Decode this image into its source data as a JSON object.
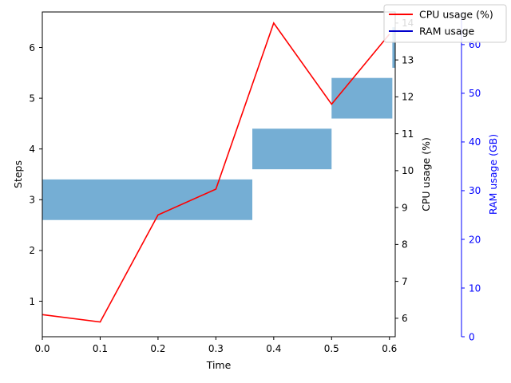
{
  "chart_data": {
    "type": "line",
    "xlabel": "Time",
    "x_ticks": [
      "0.0",
      "0.1",
      "0.2",
      "0.3",
      "0.4",
      "0.5",
      "0.6"
    ],
    "xlim": [
      0,
      0.61
    ],
    "axes": {
      "steps": {
        "label": "Steps",
        "ylim": [
          0.3,
          6.7
        ],
        "ticks": [
          "1",
          "2",
          "3",
          "4",
          "5",
          "6"
        ],
        "color": "#000000"
      },
      "cpu": {
        "label": "CPU usage (%)",
        "ylim": [
          5.5,
          14.3
        ],
        "ticks": [
          "6",
          "7",
          "8",
          "9",
          "10",
          "11",
          "12",
          "13",
          "14"
        ],
        "color": "#000000"
      },
      "ram": {
        "label": "RAM usage (GB)",
        "ylim": [
          0,
          66.7
        ],
        "ticks": [
          "0",
          "10",
          "20",
          "30",
          "40",
          "50",
          "60"
        ],
        "color": "#0000ff"
      }
    },
    "steps_bars": {
      "color": "#75aed4",
      "segments": [
        {
          "start": 0.0,
          "end": 0.363,
          "step": 3
        },
        {
          "start": 0.363,
          "end": 0.5,
          "step": 4
        },
        {
          "start": 0.5,
          "end": 0.605,
          "step": 5
        },
        {
          "start": 0.605,
          "end": 0.61,
          "step": 6
        }
      ]
    },
    "series": [
      {
        "name": "CPU usage (%)",
        "axis": "cpu",
        "color": "#ff0000",
        "x": [
          0.0,
          0.1,
          0.2,
          0.3,
          0.4,
          0.5,
          0.6
        ],
        "values": [
          6.1,
          5.9,
          8.8,
          9.5,
          14.0,
          11.8,
          13.7
        ]
      },
      {
        "name": "RAM usage",
        "axis": "ram",
        "color": "#0000cc",
        "x": [],
        "values": []
      }
    ],
    "legend": {
      "placement": "top-right",
      "entries": [
        "CPU usage (%)",
        "RAM usage"
      ]
    }
  }
}
